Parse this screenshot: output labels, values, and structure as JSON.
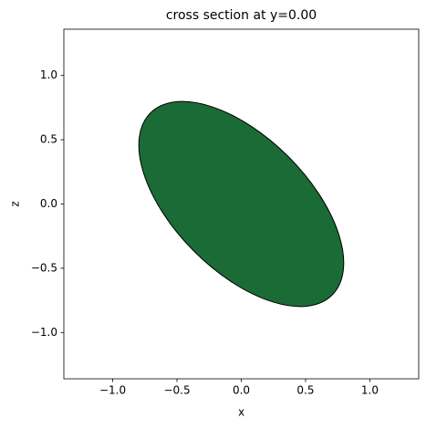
{
  "chart_data": {
    "type": "ellipse",
    "title": "cross section at y=0.00",
    "x_label": "x",
    "y_label": "z",
    "center_x": 0,
    "center_z": 0,
    "width": 2.0,
    "height": 1.04,
    "angle": -45,
    "color": "#1b6b37",
    "edgecolor": "#000000",
    "xlim": [
      -1.38,
      1.38
    ],
    "ylim": [
      -1.36,
      1.36
    ],
    "xticks": [
      {
        "value": -1.0,
        "label": "−1.0"
      },
      {
        "value": -0.5,
        "label": "−0.5"
      },
      {
        "value": 0.0,
        "label": "0.0"
      },
      {
        "value": 0.5,
        "label": "0.5"
      },
      {
        "value": 1.0,
        "label": "1.0"
      }
    ],
    "yticks": [
      {
        "value": -1.0,
        "label": "−1.0"
      },
      {
        "value": -0.5,
        "label": "−0.5"
      },
      {
        "value": 0.0,
        "label": "0.0"
      },
      {
        "value": 0.5,
        "label": "0.5"
      },
      {
        "value": 1.0,
        "label": "1.0"
      }
    ]
  }
}
